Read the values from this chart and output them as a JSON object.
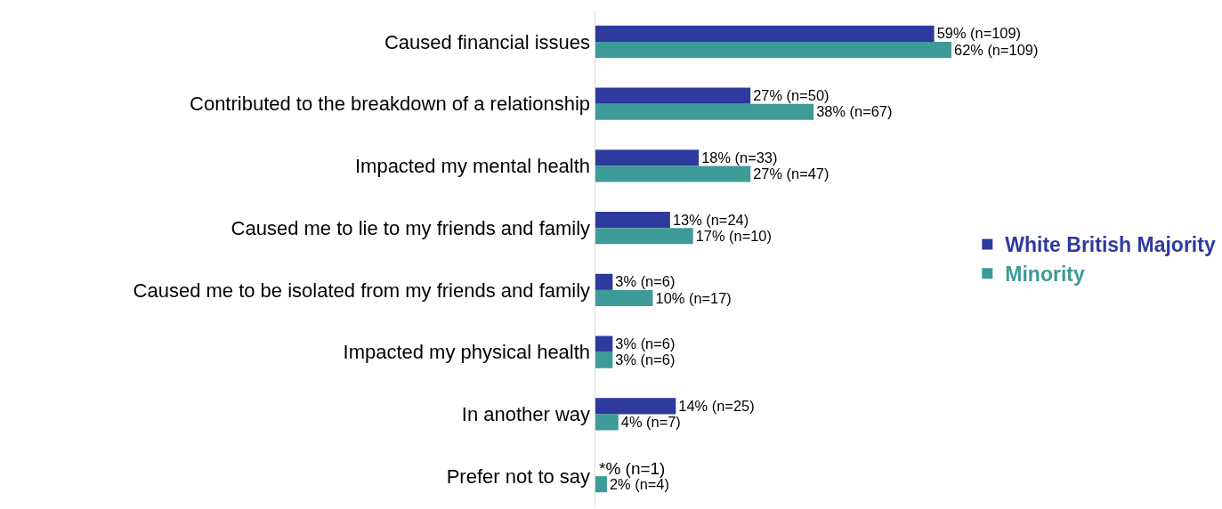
{
  "chart_data": {
    "type": "bar",
    "orientation": "horizontal",
    "categories": [
      "Caused financial issues",
      "Contributed to the breakdown of a relationship",
      "Impacted my mental health",
      "Caused me to lie to my friends and family",
      "Caused me to be isolated from my friends and family",
      "Impacted my physical health",
      "In another way",
      "Prefer not to say"
    ],
    "series": [
      {
        "name": "White British Majority",
        "color": "#2e3a9e",
        "values": [
          59,
          27,
          18,
          13,
          3,
          3,
          14,
          null
        ],
        "value_labels": [
          "59% (n=109)",
          "27% (n=50)",
          "18% (n=33)",
          "13% (n=24)",
          "3% (n=6)",
          "3% (n=6)",
          "14% (n=25)",
          "*% (n=1)"
        ]
      },
      {
        "name": "Minority",
        "color": "#3d9b98",
        "values": [
          62,
          38,
          27,
          17,
          10,
          3,
          4,
          2
        ],
        "value_labels": [
          "62% (n=109)",
          "38% (n=67)",
          "27% (n=47)",
          "17% (n=10)",
          "10% (n=17)",
          "3% (n=6)",
          "4% (n=7)",
          "2% (n=4)"
        ]
      }
    ],
    "legend": "right",
    "grid": false
  }
}
